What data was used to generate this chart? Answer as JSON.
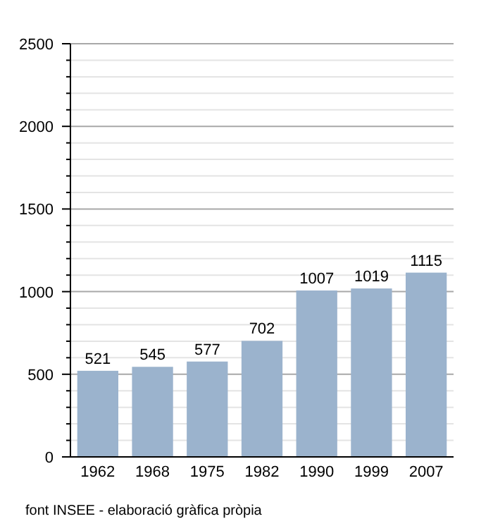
{
  "chart_data": {
    "type": "bar",
    "categories": [
      "1962",
      "1968",
      "1975",
      "1982",
      "1990",
      "1999",
      "2007"
    ],
    "values": [
      521,
      545,
      577,
      702,
      1007,
      1019,
      1115
    ],
    "color": "#9bb3cd",
    "ylim": [
      0,
      2500
    ],
    "yticks": [
      0,
      {
        "value": 100,
        "label": null
      },
      {
        "value": 200,
        "label": null
      },
      {
        "value": 300,
        "label": null
      },
      {
        "value": 400,
        "label": null
      },
      500,
      {
        "value": 600,
        "label": null
      },
      {
        "value": 700,
        "label": null
      },
      {
        "value": 800,
        "label": null
      },
      {
        "value": 900,
        "label": null
      },
      1000,
      {
        "value": 1100,
        "label": null
      },
      {
        "value": 1200,
        "label": null
      },
      {
        "value": 1300,
        "label": null
      },
      {
        "value": 1400,
        "label": null
      },
      1500,
      {
        "value": 1600,
        "label": null
      },
      {
        "value": 1700,
        "label": null
      },
      {
        "value": 1800,
        "label": null
      },
      {
        "value": 1900,
        "label": null
      },
      2000,
      {
        "value": 2100,
        "label": null
      },
      {
        "value": 2200,
        "label": null
      },
      {
        "value": 2300,
        "label": null
      },
      {
        "value": 2400,
        "label": null
      },
      2500
    ],
    "grid": true,
    "data_labels": true,
    "annotations": [
      "font INSEE - elaboració gràfica pròpia"
    ]
  }
}
